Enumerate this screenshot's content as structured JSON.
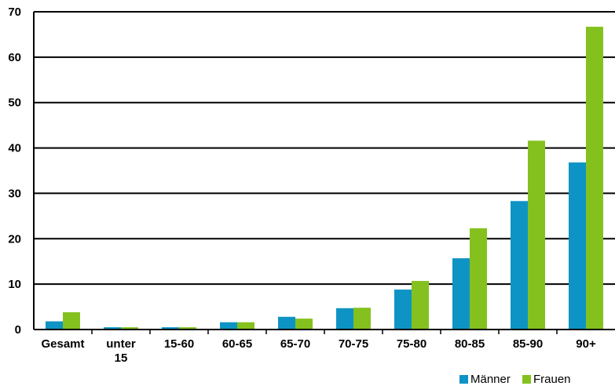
{
  "chart_data": {
    "type": "bar",
    "title": "",
    "xlabel": "",
    "ylabel": "",
    "categories": [
      "Gesamt",
      "unter 15",
      "15-60",
      "60-65",
      "65-70",
      "70-75",
      "75-80",
      "80-85",
      "85-90",
      "90+"
    ],
    "series": [
      {
        "name": "Männer",
        "color": "#0e94c4",
        "values": [
          1.8,
          0.5,
          0.5,
          1.6,
          2.8,
          4.7,
          8.8,
          15.7,
          28.3,
          36.8
        ]
      },
      {
        "name": "Frauen",
        "color": "#84c11f",
        "values": [
          3.8,
          0.5,
          0.5,
          1.6,
          2.4,
          4.8,
          10.7,
          22.3,
          41.6,
          66.7
        ]
      }
    ],
    "ylim": [
      0,
      70
    ],
    "yticks": [
      0,
      10,
      20,
      30,
      40,
      50,
      60,
      70
    ],
    "grid": true,
    "legend_position": "bottom-right"
  }
}
